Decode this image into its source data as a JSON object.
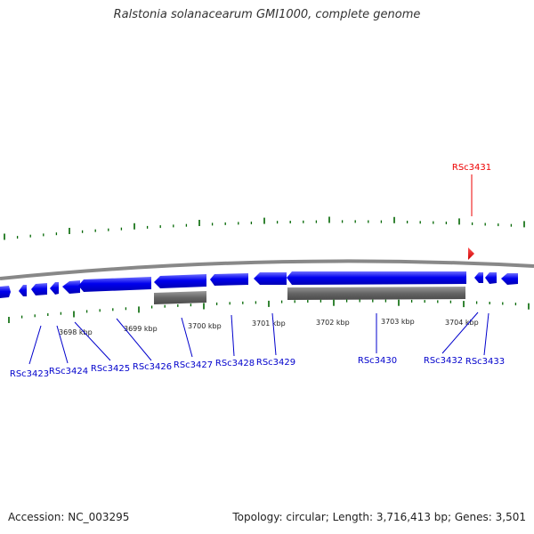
{
  "title": "Ralstonia solanacearum GMI1000, complete genome",
  "footer": {
    "accession": "Accession: NC_003295",
    "summary": "Topology: circular; Length: 3,716,413 bp; Genes: 3,501"
  },
  "colors": {
    "forward_gene": "#0000ee",
    "other_feature": "#666666",
    "highlight_gene": "#ee0000",
    "tick": "#006600",
    "backbone": "#888888"
  },
  "scale": {
    "unit": "kbp",
    "major_ticks": [
      {
        "kbp": 3698,
        "label": "3698 kbp"
      },
      {
        "kbp": 3699,
        "label": "3699 kbp"
      },
      {
        "kbp": 3700,
        "label": "3700 kbp"
      },
      {
        "kbp": 3701,
        "label": "3701 kbp"
      },
      {
        "kbp": 3702,
        "label": "3702 kbp"
      },
      {
        "kbp": 3703,
        "label": "3703 kbp"
      },
      {
        "kbp": 3704,
        "label": "3704 kbp"
      }
    ]
  },
  "genes": [
    {
      "id": "RSc3423",
      "label": "RSc3423"
    },
    {
      "id": "RSc3424",
      "label": "RSc3424"
    },
    {
      "id": "RSc3425",
      "label": "RSc3425"
    },
    {
      "id": "RSc3426",
      "label": "RSc3426"
    },
    {
      "id": "RSc3427",
      "label": "RSc3427"
    },
    {
      "id": "RSc3428",
      "label": "RSc3428"
    },
    {
      "id": "RSc3429",
      "label": "RSc3429"
    },
    {
      "id": "RSc3430",
      "label": "RSc3430"
    },
    {
      "id": "RSc3431",
      "label": "RSc3431"
    },
    {
      "id": "RSc3432",
      "label": "RSc3432"
    },
    {
      "id": "RSc3433",
      "label": "RSc3433"
    }
  ]
}
